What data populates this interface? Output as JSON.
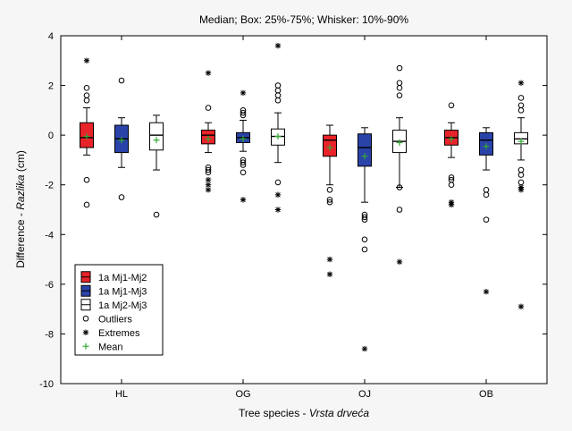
{
  "chart_data": {
    "type": "box",
    "title": "Median; Box: 25%-75%; Whisker: 10%-90%",
    "xlabel_main": "Tree species - ",
    "xlabel_italic": "Vrsta drveća",
    "ylabel_main": "Difference - ",
    "ylabel_italic": "Razlika",
    "ylabel_unit": " (cm)",
    "ylim": [
      -10,
      4
    ],
    "yticks": [
      -10,
      -8,
      -6,
      -4,
      -2,
      0,
      2,
      4
    ],
    "grid": false,
    "legend_position": "bottom-left",
    "categories": [
      "HL",
      "OG",
      "OJ",
      "OB"
    ],
    "colors": {
      "1a Mj1-Mj2": "#e8232a",
      "1a Mj1-Mj3": "#2a43a8",
      "1a Mj2-Mj3": "#ffffff",
      "mean": "#33aa33"
    },
    "legend": [
      {
        "key": "1a Mj1-Mj2",
        "label": "1a Mj1-Mj2",
        "symbol": "box-red"
      },
      {
        "key": "1a Mj1-Mj3",
        "label": "1a Mj1-Mj3",
        "symbol": "box-blue"
      },
      {
        "key": "1a Mj2-Mj3",
        "label": "1a Mj2-Mj3",
        "symbol": "box-white"
      },
      {
        "key": "outliers",
        "label": "Outliers",
        "symbol": "circle"
      },
      {
        "key": "extremes",
        "label": "Extremes",
        "symbol": "star"
      },
      {
        "key": "mean",
        "label": "Mean",
        "symbol": "plus"
      }
    ],
    "series": [
      {
        "name": "1a Mj1-Mj2",
        "data": [
          {
            "category": "HL",
            "p10": -0.8,
            "q1": -0.5,
            "median": -0.1,
            "q3": 0.5,
            "p90": 1.1,
            "mean": -0.05,
            "outliers": [
              1.9,
              1.6,
              1.4,
              -1.8,
              -2.8
            ],
            "extremes": [
              3.0
            ]
          },
          {
            "category": "OG",
            "p10": -0.7,
            "q1": -0.35,
            "median": 0.0,
            "q3": 0.2,
            "p90": 0.5,
            "mean": -0.15,
            "outliers": [
              1.1,
              -1.3,
              -1.4,
              -1.5
            ],
            "extremes": [
              2.5,
              -1.8,
              -2.0,
              -2.2
            ]
          },
          {
            "category": "OJ",
            "p10": -2.0,
            "q1": -0.85,
            "median": -0.2,
            "q3": 0.0,
            "p90": 0.4,
            "mean": -0.5,
            "outliers": [
              -2.2,
              -2.6,
              -2.7
            ],
            "extremes": [
              -5.0,
              -5.6
            ]
          },
          {
            "category": "OB",
            "p10": -0.9,
            "q1": -0.4,
            "median": -0.1,
            "q3": 0.2,
            "p90": 0.5,
            "mean": -0.15,
            "outliers": [
              1.2,
              -1.7,
              -1.8,
              -2.0
            ],
            "extremes": [
              -2.7,
              -2.8
            ]
          }
        ]
      },
      {
        "name": "1a Mj1-Mj3",
        "data": [
          {
            "category": "HL",
            "p10": -1.3,
            "q1": -0.7,
            "median": -0.15,
            "q3": 0.4,
            "p90": 0.7,
            "mean": -0.2,
            "outliers": [
              2.2,
              -2.5
            ],
            "extremes": []
          },
          {
            "category": "OG",
            "p10": -0.65,
            "q1": -0.3,
            "median": -0.1,
            "q3": 0.1,
            "p90": 0.6,
            "mean": -0.15,
            "outliers": [
              1.0,
              0.9,
              0.8,
              -1.0,
              -1.1,
              -1.2,
              -1.5
            ],
            "extremes": [
              1.7,
              -2.6
            ]
          },
          {
            "category": "OJ",
            "p10": -2.7,
            "q1": -1.25,
            "median": -0.5,
            "q3": 0.05,
            "p90": 0.3,
            "mean": -0.85,
            "outliers": [
              -3.2,
              -3.3,
              -3.4,
              -4.2,
              -4.6
            ],
            "extremes": [
              -8.6
            ]
          },
          {
            "category": "OB",
            "p10": -1.4,
            "q1": -0.8,
            "median": -0.2,
            "q3": 0.1,
            "p90": 0.3,
            "mean": -0.45,
            "outliers": [
              -2.2,
              -2.4,
              -3.4
            ],
            "extremes": [
              -6.3
            ]
          }
        ]
      },
      {
        "name": "1a Mj2-Mj3",
        "data": [
          {
            "category": "HL",
            "p10": -1.4,
            "q1": -0.6,
            "median": 0.0,
            "q3": 0.5,
            "p90": 0.8,
            "mean": -0.2,
            "outliers": [
              -3.2
            ],
            "extremes": []
          },
          {
            "category": "OG",
            "p10": -1.1,
            "q1": -0.4,
            "median": -0.05,
            "q3": 0.25,
            "p90": 0.9,
            "mean": -0.05,
            "outliers": [
              2.0,
              1.8,
              1.6,
              1.4,
              -1.9
            ],
            "extremes": [
              3.6,
              -2.4,
              -3.0
            ]
          },
          {
            "category": "OJ",
            "p10": -2.1,
            "q1": -0.7,
            "median": -0.25,
            "q3": 0.2,
            "p90": 0.7,
            "mean": -0.3,
            "outliers": [
              2.7,
              2.1,
              1.9,
              1.6,
              -2.1,
              -3.0
            ],
            "extremes": [
              -5.1
            ]
          },
          {
            "category": "OB",
            "p10": -1.0,
            "q1": -0.35,
            "median": -0.15,
            "q3": 0.1,
            "p90": 0.7,
            "mean": -0.25,
            "outliers": [
              1.5,
              1.2,
              1.0,
              -1.4,
              -1.6,
              -1.9
            ],
            "extremes": [
              2.1,
              -2.1,
              -2.2,
              -6.9
            ]
          }
        ]
      }
    ]
  }
}
